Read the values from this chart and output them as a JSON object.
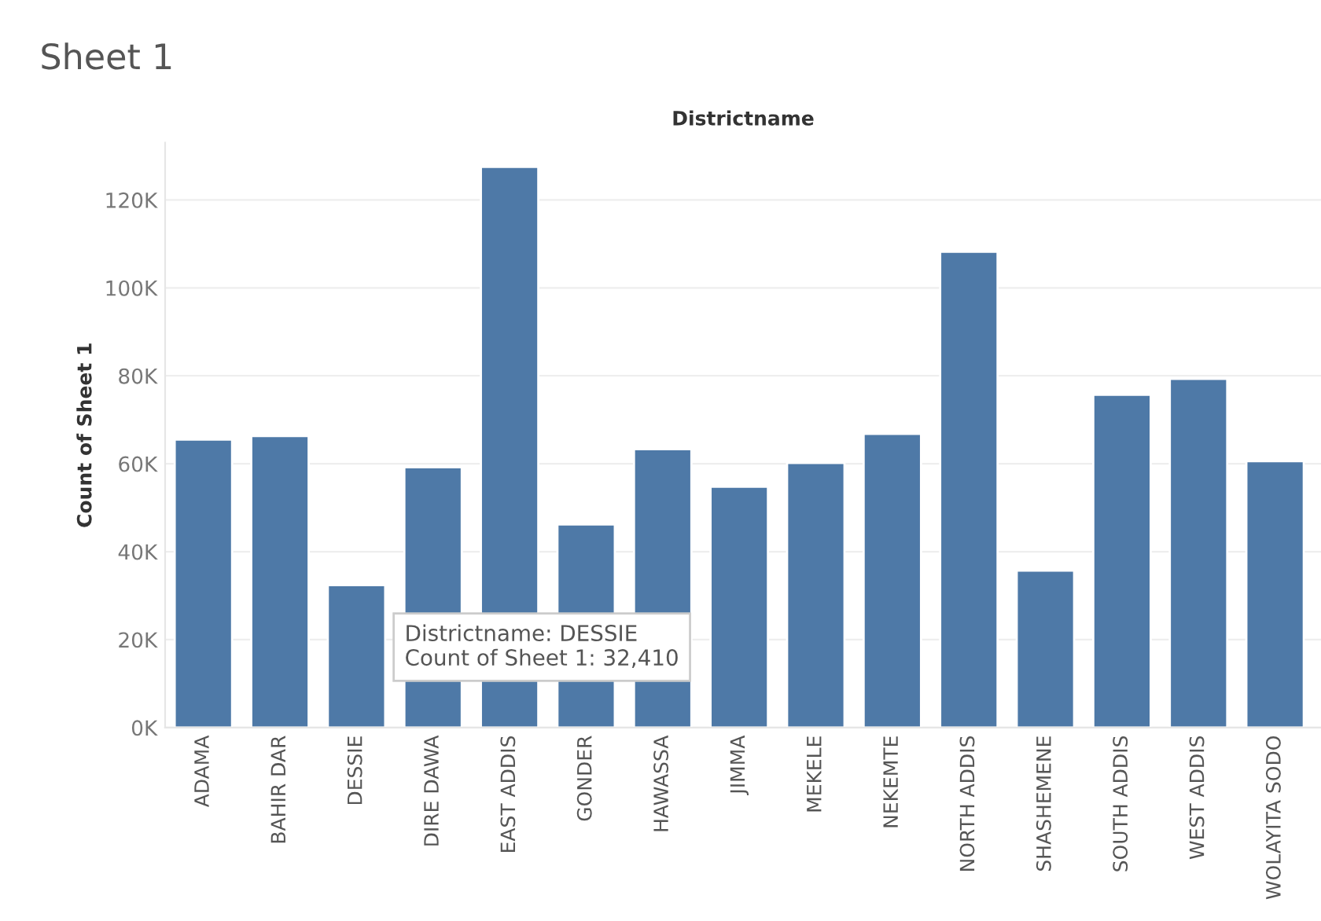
{
  "chart_data": {
    "type": "bar",
    "title": "Sheet 1",
    "xlabel": "Districtname",
    "ylabel": "Count of Sheet 1",
    "categories": [
      "ADAMA",
      "BAHIR DAR",
      "DESSIE",
      "DIRE DAWA",
      "EAST ADDIS",
      "GONDER",
      "HAWASSA",
      "JIMMA",
      "MEKELE",
      "NEKEMTE",
      "NORTH ADDIS",
      "SHASHEMENE",
      "SOUTH ADDIS",
      "WEST ADDIS",
      "WOLAYITA SODO"
    ],
    "values": [
      65500,
      66300,
      32410,
      59200,
      127500,
      46200,
      63300,
      54800,
      60200,
      66800,
      108200,
      35700,
      75700,
      79300,
      60600
    ],
    "color": "#4e79a7",
    "ylim": [
      0,
      133000
    ],
    "yticks": [
      {
        "value": 0,
        "label": "0K"
      },
      {
        "value": 20000,
        "label": "20K"
      },
      {
        "value": 40000,
        "label": "40K"
      },
      {
        "value": 60000,
        "label": "60K"
      },
      {
        "value": 80000,
        "label": "80K"
      },
      {
        "value": 100000,
        "label": "100K"
      },
      {
        "value": 120000,
        "label": "120K"
      }
    ],
    "grid": "y",
    "annotations": [
      {
        "text": "Districtname: DESSIE\nCount of Sheet 1: 32,410",
        "x": "DESSIE",
        "y": 32410
      }
    ]
  }
}
